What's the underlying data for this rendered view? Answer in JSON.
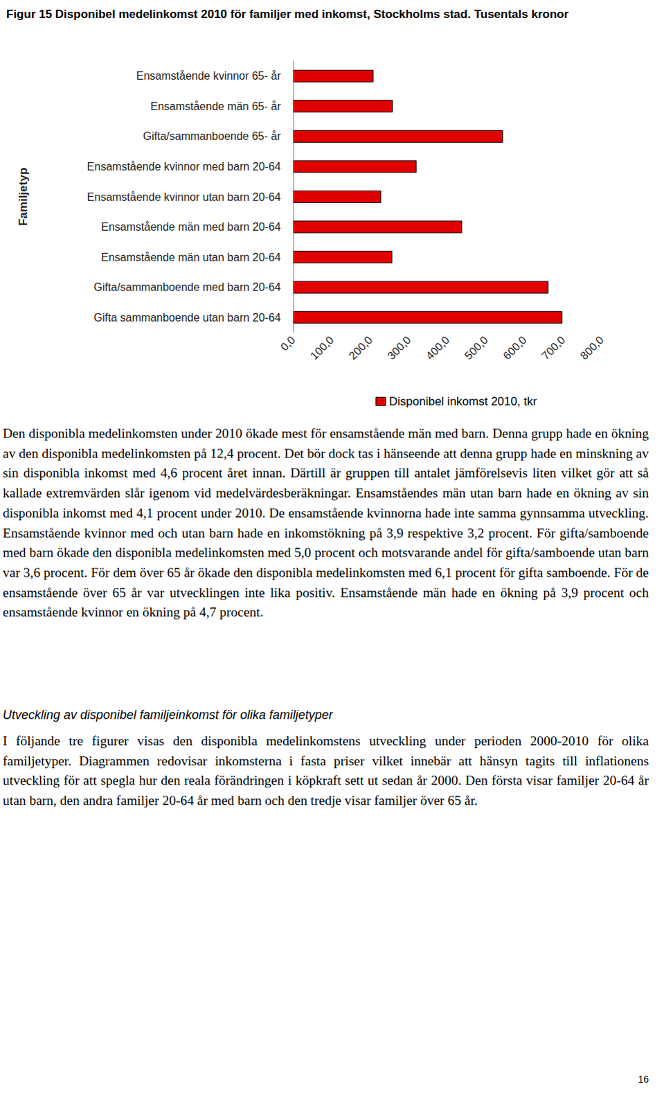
{
  "chart_data": {
    "type": "bar",
    "orientation": "horizontal",
    "title": "Figur 15 Disponibel medelinkomst 2010 för familjer med inkomst, Stockholms stad. Tusentals kronor",
    "ylabel": "Familjetyp",
    "categories": [
      "Ensamstående kvinnor 65- år",
      "Ensamstående män 65- år",
      "Gifta/sammanboende 65- år",
      "Ensamstående kvinnor med barn 20-64",
      "Ensamstående kvinnor utan barn 20-64",
      "Ensamstående män med barn 20-64",
      "Ensamstående män utan barn 20-64",
      "Gifta/sammanboende med barn 20-64",
      "Gifta sammanboende utan barn 20-64"
    ],
    "series": [
      {
        "name": "Disponibel inkomst 2010, tkr",
        "color": "#e00000",
        "values": [
          208,
          258,
          544,
          320,
          228,
          438,
          257,
          662,
          698
        ]
      }
    ],
    "xlim": [
      0,
      800
    ],
    "xticks": [
      {
        "value": 0,
        "label": "0,0"
      },
      {
        "value": 100,
        "label": "100,0"
      },
      {
        "value": 200,
        "label": "200,0"
      },
      {
        "value": 300,
        "label": "300,0"
      },
      {
        "value": 400,
        "label": "400,0"
      },
      {
        "value": 500,
        "label": "500,0"
      },
      {
        "value": 600,
        "label": "600,0"
      },
      {
        "value": 700,
        "label": "700,0"
      },
      {
        "value": 800,
        "label": "800,0"
      }
    ],
    "grid": false,
    "legend": "bottom"
  },
  "text": {
    "paragraphs": [
      "Den disponibla medelinkomsten under 2010 ökade mest för ensamstående män med barn. Denna grupp hade en ökning av den disponibla medelinkomsten på 12,4 procent. Det bör dock tas i hänseende att denna grupp hade en minskning av sin disponibla inkomst med 4,6 procent året innan. Därtill är gruppen till antalet jämförelsevis liten vilket gör att så kallade extremvärden slår igenom vid medelvärdesberäkningar. Ensamståendes män utan barn hade en ökning av sin disponibla inkomst med 4,1 procent under 2010. De ensamstående kvinnorna hade inte samma gynnsamma utveckling. Ensamstående kvinnor med och utan barn hade en inkomstökning på 3,9 respektive 3,2 procent. För gifta/samboende med barn ökade den disponibla medelinkomsten med 5,0 procent och motsvarande andel för gifta/samboende utan barn var 3,6 procent. För dem över 65 år ökade den disponibla medelinkomsten med 6,1 procent för gifta samboende. För de ensamstående över 65 år var utvecklingen inte lika positiv. Ensamstående män hade en ökning på 3,9 procent och ensamstående kvinnor en ökning på 4,7 procent."
    ],
    "section_heading": "Utveckling av disponibel familjeinkomst för olika familjetyper",
    "section_paragraphs": [
      "I följande tre figurer visas den disponibla medelinkomstens utveckling under perioden 2000-2010 för olika familjetyper. Diagrammen redovisar inkomsterna i fasta priser vilket innebär att hänsyn tagits till inflationens utveckling för att spegla hur den reala förändringen i köpkraft sett ut sedan år 2000. Den första visar familjer 20-64 år utan barn, den andra familjer 20-64 år med barn och den tredje visar familjer över 65 år."
    ],
    "page_number": "16"
  }
}
